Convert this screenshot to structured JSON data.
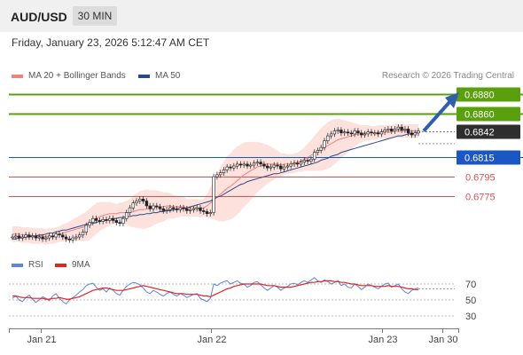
{
  "header": {
    "symbol": "AUD/USD",
    "timeframe": "30 MIN"
  },
  "datetime": "Friday, January 23, 2026 5:12:47 AM CET",
  "legend": {
    "ma_label": "MA 20 + Bollinger Bands",
    "ma50_label": "MA 50",
    "credit": "Research © 2026 Trading Central"
  },
  "colors": {
    "resistance": "#5aa00e",
    "support": "#1a56c4",
    "minor": "#e05050",
    "arrow": "#2f5fa8",
    "ma20": "#f08080",
    "ma50": "#2b4a8c",
    "rsi": "#5b86d9",
    "rsi_ma": "#e32222"
  },
  "chart_data": [
    {
      "type": "candlestick",
      "title": "AUD/USD 30 MIN",
      "levels": [
        {
          "label": "0.6880",
          "value": 0.688,
          "role": "resistance"
        },
        {
          "label": "0.6860",
          "value": 0.686,
          "role": "resistance"
        },
        {
          "label": "0.6842",
          "value": 0.6842,
          "role": "current"
        },
        {
          "label": "0.6815",
          "value": 0.6815,
          "role": "support"
        },
        {
          "label": "0.6795",
          "value": 0.6795,
          "role": "minor"
        },
        {
          "label": "0.6775",
          "value": 0.6775,
          "role": "minor"
        }
      ],
      "series": [
        {
          "name": "MA 20 + Bollinger Bands"
        },
        {
          "name": "MA 50"
        }
      ],
      "x_ticks": [
        "Jan 21",
        "Jan 22",
        "Jan 23",
        "Jan 30"
      ],
      "close": [
        0.6733,
        0.6734,
        0.6732,
        0.6733,
        0.6735,
        0.6733,
        0.6734,
        0.6732,
        0.6733,
        0.6731,
        0.6732,
        0.6734,
        0.6733,
        0.6736,
        0.6735,
        0.6733,
        0.6731,
        0.673,
        0.6732,
        0.6733,
        0.6735,
        0.6738,
        0.6745,
        0.6748,
        0.6752,
        0.675,
        0.6749,
        0.6751,
        0.675,
        0.6752,
        0.675,
        0.6748,
        0.6747,
        0.6752,
        0.6758,
        0.6763,
        0.6768,
        0.677,
        0.6772,
        0.677,
        0.6765,
        0.6762,
        0.6765,
        0.6764,
        0.6762,
        0.676,
        0.6761,
        0.6763,
        0.6762,
        0.6761,
        0.6763,
        0.6762,
        0.676,
        0.6761,
        0.6762,
        0.6763,
        0.676,
        0.6759,
        0.6757,
        0.6758,
        0.6795,
        0.6797,
        0.6799,
        0.6802,
        0.6805,
        0.6804,
        0.6806,
        0.6808,
        0.6807,
        0.6808,
        0.6806,
        0.6807,
        0.6809,
        0.681,
        0.6808,
        0.6806,
        0.6804,
        0.6805,
        0.6807,
        0.6806,
        0.6803,
        0.6805,
        0.6806,
        0.6808,
        0.6809,
        0.6808,
        0.681,
        0.6812,
        0.6811,
        0.6813,
        0.682,
        0.6822,
        0.6825,
        0.6832,
        0.6837,
        0.6839,
        0.6842,
        0.6843,
        0.684,
        0.6841,
        0.684,
        0.6839,
        0.6842,
        0.684,
        0.6838,
        0.6839,
        0.6841,
        0.684,
        0.684,
        0.6839,
        0.6841,
        0.6843,
        0.6844,
        0.6842,
        0.6844,
        0.6846,
        0.6843,
        0.6844,
        0.684,
        0.6838,
        0.684,
        0.6842
      ],
      "ma20": [
        0.6736,
        0.6736,
        0.6736,
        0.6735,
        0.6735,
        0.6735,
        0.6734,
        0.6734,
        0.6734,
        0.6734,
        0.6733,
        0.6734,
        0.6734,
        0.6735,
        0.6736,
        0.6737,
        0.6738,
        0.6739,
        0.674,
        0.6741,
        0.6742,
        0.6743,
        0.6744,
        0.6746,
        0.6749,
        0.6752,
        0.6754,
        0.6755,
        0.6756,
        0.6757,
        0.6757,
        0.6757,
        0.6758,
        0.6758,
        0.6758,
        0.6758,
        0.6759,
        0.676,
        0.6761,
        0.6761,
        0.6762,
        0.6762,
        0.6763,
        0.6764,
        0.6764,
        0.6764,
        0.6765,
        0.6765,
        0.6764,
        0.6764,
        0.6764,
        0.6764,
        0.6763,
        0.6763,
        0.6763,
        0.6763,
        0.6762,
        0.6763,
        0.6765,
        0.6768,
        0.6771,
        0.6774,
        0.6777,
        0.678,
        0.6783,
        0.6785,
        0.6788,
        0.6791,
        0.6794,
        0.6797,
        0.6799,
        0.6801,
        0.6803,
        0.6805,
        0.6806,
        0.6807,
        0.6808,
        0.6808,
        0.6808,
        0.6808,
        0.6807,
        0.6808,
        0.6808,
        0.6808,
        0.6809,
        0.681,
        0.6811,
        0.6813,
        0.6815,
        0.6817,
        0.6819,
        0.6821,
        0.6823,
        0.6825,
        0.6827,
        0.6829,
        0.6831,
        0.6833,
        0.6834,
        0.6835,
        0.6836,
        0.6837,
        0.6838,
        0.6839,
        0.6839,
        0.684,
        0.684,
        0.684,
        0.684,
        0.6841,
        0.6841,
        0.6841,
        0.6841,
        0.6841,
        0.6842,
        0.6842,
        0.6842,
        0.6842,
        0.6842,
        0.6842,
        0.6842,
        0.6842
      ],
      "ma50": [
        0.6731,
        0.6731,
        0.6732,
        0.6732,
        0.6733,
        0.6733,
        0.6734,
        0.6734,
        0.6735,
        0.6735,
        0.6736,
        0.6737,
        0.6737,
        0.6738,
        0.6739,
        0.674,
        0.674,
        0.6741,
        0.6742,
        0.6743,
        0.6744,
        0.6745,
        0.6746,
        0.6747,
        0.6747,
        0.6748,
        0.6749,
        0.675,
        0.675,
        0.6751,
        0.6752,
        0.6752,
        0.6753,
        0.6753,
        0.6754,
        0.6754,
        0.6755,
        0.6755,
        0.6756,
        0.6756,
        0.6757,
        0.6757,
        0.6758,
        0.6758,
        0.6759,
        0.6759,
        0.676,
        0.676,
        0.6761,
        0.6761,
        0.6762,
        0.6762,
        0.6763,
        0.6764,
        0.6765,
        0.6766,
        0.6767,
        0.6768,
        0.6769,
        0.677,
        0.6772,
        0.6774,
        0.6775,
        0.6777,
        0.6779,
        0.6781,
        0.6783,
        0.6785,
        0.6787,
        0.6788,
        0.679,
        0.6791,
        0.6792,
        0.6793,
        0.6794,
        0.6795,
        0.6796,
        0.6797,
        0.6798,
        0.6798,
        0.6799,
        0.68,
        0.6801,
        0.6802,
        0.6803,
        0.6804,
        0.6805,
        0.6806,
        0.6807,
        0.6808,
        0.6809,
        0.681,
        0.6812,
        0.6813,
        0.6814,
        0.6816,
        0.6817,
        0.6818,
        0.682,
        0.6821,
        0.6822,
        0.6823,
        0.6824,
        0.6825,
        0.6826,
        0.6827,
        0.6828,
        0.6829,
        0.683,
        0.6831,
        0.6832,
        0.6833,
        0.6834,
        0.6835,
        0.6836,
        0.6837,
        0.6837,
        0.6838,
        0.6839,
        0.6839,
        0.684,
        0.684
      ],
      "band_width": [
        0.0008,
        0.0008,
        0.0008,
        0.0008,
        0.0008,
        0.0008,
        0.0008,
        0.0008,
        0.0008,
        0.0008,
        0.0008,
        0.0008,
        0.0008,
        0.0008,
        0.0008,
        0.0009,
        0.0009,
        0.001,
        0.0011,
        0.0012,
        0.0013,
        0.0014,
        0.0015,
        0.0016,
        0.0016,
        0.0016,
        0.0015,
        0.0014,
        0.0013,
        0.0012,
        0.0011,
        0.001,
        0.001,
        0.0011,
        0.0012,
        0.0014,
        0.0016,
        0.0018,
        0.0019,
        0.002,
        0.002,
        0.0019,
        0.0018,
        0.0017,
        0.0016,
        0.0015,
        0.0014,
        0.0013,
        0.0012,
        0.0011,
        0.001,
        0.001,
        0.0009,
        0.0009,
        0.0009,
        0.0009,
        0.0009,
        0.0009,
        0.0012,
        0.0016,
        0.002,
        0.0024,
        0.0028,
        0.0031,
        0.0033,
        0.0034,
        0.0035,
        0.0035,
        0.0034,
        0.0033,
        0.0032,
        0.003,
        0.0028,
        0.0026,
        0.0024,
        0.0022,
        0.002,
        0.0018,
        0.0016,
        0.0014,
        0.0012,
        0.0011,
        0.001,
        0.001,
        0.001,
        0.001,
        0.0011,
        0.0012,
        0.0014,
        0.0016,
        0.0018,
        0.002,
        0.0022,
        0.0023,
        0.0024,
        0.0024,
        0.0023,
        0.0022,
        0.002,
        0.0018,
        0.0016,
        0.0014,
        0.0012,
        0.001,
        0.0009,
        0.0008,
        0.0008,
        0.0007,
        0.0007,
        0.0007,
        0.0007,
        0.0007,
        0.0007,
        0.0007,
        0.0007,
        0.0007,
        0.0007,
        0.0007,
        0.0007,
        0.0007,
        0.0007,
        0.0007
      ],
      "projection": {
        "from": 0.6842,
        "to": 0.688
      }
    },
    {
      "type": "line",
      "title": "",
      "series": [
        {
          "name": "RSI",
          "values": [
            52,
            55,
            50,
            48,
            53,
            56,
            51,
            47,
            50,
            54,
            52,
            49,
            55,
            58,
            52,
            48,
            45,
            50,
            53,
            56,
            60,
            63,
            68,
            70,
            71,
            66,
            62,
            64,
            60,
            65,
            62,
            58,
            56,
            62,
            67,
            70,
            72,
            71,
            69,
            65,
            60,
            58,
            62,
            60,
            57,
            55,
            58,
            60,
            57,
            55,
            58,
            56,
            53,
            55,
            57,
            58,
            52,
            50,
            48,
            52,
            70,
            68,
            71,
            73,
            74,
            70,
            72,
            74,
            71,
            70,
            66,
            68,
            72,
            73,
            69,
            65,
            62,
            65,
            68,
            66,
            62,
            65,
            67,
            70,
            71,
            69,
            72,
            74,
            72,
            75,
            78,
            74,
            72,
            75,
            73,
            70,
            72,
            74,
            68,
            70,
            66,
            65,
            70,
            67,
            63,
            66,
            70,
            68,
            66,
            64,
            67,
            70,
            71,
            66,
            68,
            70,
            64,
            60,
            58,
            62,
            64,
            65
          ]
        },
        {
          "name": "9MA",
          "values": [
            55,
            55,
            54,
            53,
            53,
            53,
            52,
            52,
            52,
            52,
            51,
            51,
            52,
            52,
            53,
            52,
            51,
            51,
            52,
            53,
            54,
            56,
            58,
            60,
            62,
            63,
            64,
            65,
            65,
            64,
            63,
            62,
            62,
            62,
            63,
            64,
            65,
            66,
            67,
            68,
            67,
            66,
            65,
            64,
            63,
            62,
            61,
            60,
            59,
            58,
            58,
            58,
            57,
            57,
            57,
            57,
            56,
            55,
            55,
            54,
            56,
            58,
            60,
            62,
            64,
            65,
            67,
            68,
            69,
            70,
            70,
            70,
            70,
            70,
            70,
            69,
            68,
            68,
            68,
            67,
            66,
            66,
            66,
            66,
            67,
            68,
            69,
            70,
            71,
            72,
            72,
            73,
            73,
            74,
            74,
            74,
            73,
            73,
            72,
            72,
            71,
            70,
            70,
            69,
            68,
            68,
            68,
            68,
            67,
            67,
            67,
            67,
            68,
            67,
            67,
            67,
            66,
            65,
            64,
            64,
            63,
            63
          ]
        }
      ],
      "y_ticks": [
        "70",
        "50",
        "30"
      ],
      "ylim": [
        20,
        80
      ],
      "x_ticks": [
        "Jan 21",
        "Jan 22",
        "Jan 23",
        "Jan 30"
      ]
    }
  ]
}
